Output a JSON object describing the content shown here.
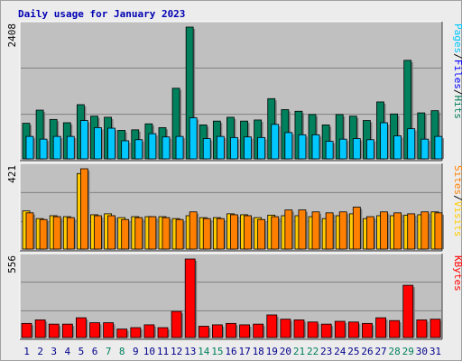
{
  "colors": {
    "background": "#ececec",
    "panel": "#c0c0c0",
    "grid": "#808080",
    "title": "#0000b4",
    "hits": "#00805c",
    "files": "#0000ff",
    "pages": "#00c8ff",
    "visits": "#ffcc00",
    "sites": "#ff8000",
    "kbytes": "#ff0000",
    "weekday": "#00008b",
    "weekend": "#00805c",
    "separator": "#000000"
  },
  "chart_data": [
    {
      "type": "bar",
      "title": "Daily usage for January 2023",
      "ymax_label": "2408",
      "legend": [
        "Pages",
        "/",
        "Files",
        "/",
        "Hits"
      ],
      "legend_colors": [
        "pages",
        "separator",
        "files",
        "separator",
        "hits"
      ],
      "categories": [
        "1",
        "2",
        "3",
        "4",
        "5",
        "6",
        "7",
        "8",
        "9",
        "10",
        "11",
        "12",
        "13",
        "14",
        "15",
        "16",
        "17",
        "18",
        "19",
        "20",
        "21",
        "22",
        "23",
        "24",
        "25",
        "26",
        "27",
        "28",
        "29",
        "30",
        "31"
      ],
      "ylim": [
        0,
        2408
      ],
      "series": [
        {
          "name": "Hits",
          "color": "hits",
          "values": [
            650,
            890,
            720,
            660,
            990,
            780,
            760,
            520,
            530,
            640,
            570,
            1290,
            2408,
            620,
            690,
            760,
            690,
            710,
            1100,
            900,
            870,
            810,
            620,
            810,
            780,
            700,
            1040,
            820,
            1800,
            840,
            880
          ]
        },
        {
          "name": "Pages",
          "color": "pages",
          "values": [
            410,
            360,
            410,
            410,
            700,
            570,
            560,
            330,
            350,
            460,
            400,
            410,
            750,
            370,
            410,
            390,
            400,
            390,
            630,
            480,
            440,
            440,
            320,
            360,
            370,
            350,
            660,
            420,
            550,
            360,
            410
          ]
        }
      ]
    },
    {
      "type": "bar",
      "ymax_label": "421",
      "legend": [
        "Sites",
        "/",
        "Visits"
      ],
      "legend_colors": [
        "sites",
        "separator",
        "visits"
      ],
      "categories": [
        "1",
        "2",
        "3",
        "4",
        "5",
        "6",
        "7",
        "8",
        "9",
        "10",
        "11",
        "12",
        "13",
        "14",
        "15",
        "16",
        "17",
        "18",
        "19",
        "20",
        "21",
        "22",
        "23",
        "24",
        "25",
        "26",
        "27",
        "28",
        "29",
        "30",
        "31"
      ],
      "ylim": [
        0,
        421
      ],
      "series": [
        {
          "name": "Visits",
          "color": "visits",
          "values": [
            200,
            160,
            175,
            170,
            396,
            180,
            185,
            165,
            170,
            170,
            170,
            160,
            175,
            165,
            165,
            185,
            180,
            165,
            178,
            175,
            175,
            170,
            160,
            175,
            185,
            160,
            175,
            175,
            178,
            180,
            195
          ]
        },
        {
          "name": "Sites",
          "color": "sites",
          "values": [
            190,
            155,
            170,
            165,
            421,
            175,
            175,
            155,
            165,
            170,
            165,
            155,
            195,
            160,
            160,
            180,
            175,
            155,
            170,
            205,
            205,
            195,
            190,
            195,
            220,
            170,
            195,
            190,
            185,
            195,
            190
          ]
        }
      ]
    },
    {
      "type": "bar",
      "ymax_label": "556",
      "legend": [
        "KBytes"
      ],
      "legend_colors": [
        "kbytes"
      ],
      "categories": [
        "1",
        "2",
        "3",
        "4",
        "5",
        "6",
        "7",
        "8",
        "9",
        "10",
        "11",
        "12",
        "13",
        "14",
        "15",
        "16",
        "17",
        "18",
        "19",
        "20",
        "21",
        "22",
        "23",
        "24",
        "25",
        "26",
        "27",
        "28",
        "29",
        "30",
        "31"
      ],
      "ylim": [
        0,
        556
      ],
      "series": [
        {
          "name": "KBytes",
          "color": "kbytes",
          "values": [
            100,
            125,
            95,
            95,
            140,
            105,
            105,
            60,
            70,
            90,
            70,
            185,
            556,
            80,
            90,
            100,
            90,
            95,
            160,
            130,
            125,
            110,
            95,
            115,
            110,
            100,
            140,
            120,
            370,
            125,
            130
          ]
        }
      ]
    }
  ],
  "day_colors": [
    "weekday",
    "weekday",
    "weekday",
    "weekday",
    "weekday",
    "weekday",
    "weekend",
    "weekend",
    "weekday",
    "weekday",
    "weekday",
    "weekday",
    "weekday",
    "weekend",
    "weekend",
    "weekday",
    "weekday",
    "weekday",
    "weekday",
    "weekday",
    "weekend",
    "weekend",
    "weekday",
    "weekday",
    "weekday",
    "weekday",
    "weekday",
    "weekend",
    "weekend",
    "weekday",
    "weekday"
  ]
}
